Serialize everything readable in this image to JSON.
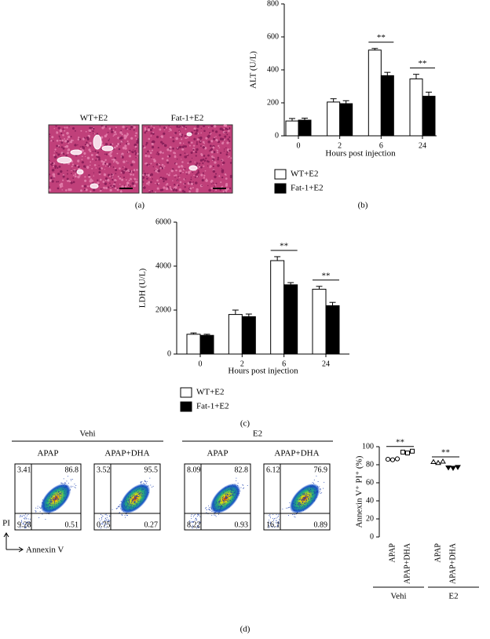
{
  "panel_a": {
    "images": [
      "WT+E2",
      "Fat-1+E2"
    ],
    "caption": "(a)"
  },
  "chart_data": [
    {
      "type": "bar",
      "y_label": "ALT (U/L)",
      "x_label": "Hours post injection",
      "categories": [
        "0",
        "2",
        "6",
        "24"
      ],
      "series": [
        {
          "name": "WT+E2",
          "color": "#ffffff",
          "values": [
            90,
            205,
            520,
            345
          ],
          "errors": [
            15,
            20,
            10,
            28
          ]
        },
        {
          "name": "Fat-1+E2",
          "color": "#000000",
          "values": [
            95,
            195,
            365,
            240
          ],
          "errors": [
            12,
            18,
            20,
            25
          ]
        }
      ],
      "ylim": [
        0,
        800
      ],
      "yticks": [
        0,
        200,
        400,
        600,
        800
      ],
      "annotations": [
        {
          "text": "**",
          "category": "6"
        },
        {
          "text": "**",
          "category": "24"
        }
      ],
      "caption": "(b)"
    },
    {
      "type": "bar",
      "y_label": "LDH (U/L)",
      "x_label": "Hours post injection",
      "categories": [
        "0",
        "2",
        "6",
        "24"
      ],
      "series": [
        {
          "name": "WT+E2",
          "color": "#ffffff",
          "values": [
            900,
            1800,
            4250,
            2950
          ],
          "errors": [
            60,
            200,
            180,
            130
          ]
        },
        {
          "name": "Fat-1+E2",
          "color": "#000000",
          "values": [
            850,
            1700,
            3150,
            2200
          ],
          "errors": [
            50,
            120,
            100,
            150
          ]
        }
      ],
      "ylim": [
        0,
        6000
      ],
      "yticks": [
        0,
        2000,
        4000,
        6000
      ],
      "annotations": [
        {
          "text": "**",
          "category": "6"
        },
        {
          "text": "**",
          "category": "24"
        }
      ],
      "caption": "(c)"
    },
    {
      "type": "dot",
      "y_label": "Annexin V⁺ PI⁺ (%)",
      "categories": [
        "APAP",
        "APAP+DHA",
        "APAP",
        "APAP+DHA"
      ],
      "groups": [
        "Vehi",
        "E2"
      ],
      "values": [
        [
          86,
          85.5,
          86.5
        ],
        [
          94,
          93,
          95
        ],
        [
          83,
          82,
          83.5
        ],
        [
          77,
          76.5,
          77.5
        ]
      ],
      "ylim": [
        0,
        100
      ],
      "yticks": [
        0,
        20,
        40,
        60,
        80,
        100
      ],
      "annotations": [
        {
          "text": "**",
          "group": "Vehi"
        },
        {
          "text": "**",
          "group": "E2"
        }
      ]
    }
  ],
  "panel_d_flow": {
    "y_axis": "PI",
    "x_axis": "Annexin V",
    "caption": "(d)",
    "groups": [
      {
        "name": "Vehi",
        "plots": [
          {
            "label": "APAP",
            "ul": 3.41,
            "ur": 86.8,
            "ll": 9.28,
            "lr": 0.51
          },
          {
            "label": "APAP+DHA",
            "ul": 3.52,
            "ur": 95.5,
            "ll": 0.75,
            "lr": 0.27
          }
        ]
      },
      {
        "name": "E2",
        "plots": [
          {
            "label": "APAP",
            "ul": 8.09,
            "ur": 82.8,
            "ll": 8.22,
            "lr": 0.93
          },
          {
            "label": "APAP+DHA",
            "ul": 6.12,
            "ur": 76.9,
            "ll": 16.1,
            "lr": 0.89
          }
        ]
      }
    ]
  }
}
